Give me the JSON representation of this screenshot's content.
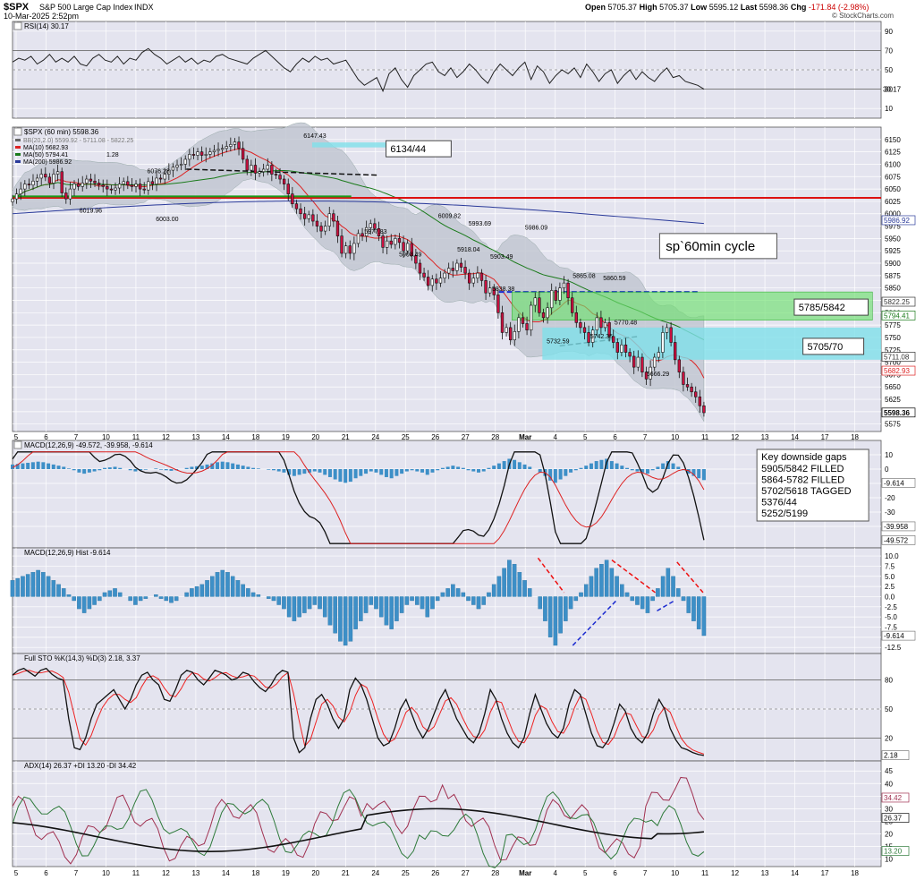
{
  "header": {
    "symbol": "$SPX",
    "name": "S&P 500 Large Cap Index",
    "exchange": "INDX",
    "datetime": "10-Mar-2025 2:52pm",
    "open_label": "Open",
    "open": "5705.37",
    "high_label": "High",
    "high": "5705.37",
    "low_label": "Low",
    "low": "5595.12",
    "last_label": "Last",
    "last": "5598.36",
    "chg_label": "Chg",
    "chg": "-171.84 (-2.98%)",
    "watermark": "© StockCharts.com"
  },
  "colors": {
    "panel_bg": "#e4e4ef",
    "grid": "#ffffff",
    "up_candle": "#ffffff",
    "down_candle": "#cc1140",
    "ma10": "#d22",
    "ma50": "#1a7a1a",
    "ma200": "#2a3a9a",
    "hist": "#3d8fc7",
    "red_hline": "#dd1111",
    "green_hline": "#1a9a1a",
    "blue_dash": "#1a2ad0"
  },
  "x_labels": [
    "5",
    "6",
    "7",
    "10",
    "11",
    "12",
    "13",
    "14",
    "18",
    "19",
    "20",
    "21",
    "24",
    "25",
    "26",
    "27",
    "28",
    "Mar",
    "4",
    "5",
    "6",
    "7",
    "10",
    "11",
    "12",
    "13",
    "14",
    "17",
    "18"
  ],
  "rsi": {
    "title": "RSI(14) 30.17",
    "ticks": [
      "90",
      "70",
      "50",
      "30",
      "10"
    ],
    "last_tag": "30.17",
    "values": [
      58,
      62,
      60,
      64,
      56,
      60,
      66,
      58,
      62,
      58,
      64,
      56,
      54,
      62,
      66,
      60,
      58,
      64,
      56,
      62,
      60,
      68,
      72,
      66,
      62,
      56,
      60,
      64,
      58,
      62,
      56,
      60,
      58,
      64,
      66,
      62,
      60,
      58,
      56,
      62,
      66,
      70,
      64,
      58,
      52,
      48,
      56,
      62,
      58,
      64,
      60,
      62,
      56,
      58,
      60,
      50,
      40,
      34,
      38,
      42,
      28,
      46,
      52,
      40,
      32,
      44,
      50,
      56,
      58,
      48,
      44,
      52,
      42,
      48,
      56,
      50,
      42,
      36,
      48,
      56,
      50,
      44,
      52,
      58,
      40,
      54,
      48,
      36,
      44,
      50,
      46,
      52,
      42,
      56,
      48,
      38,
      46,
      50,
      36,
      44,
      50,
      40,
      48,
      42,
      38,
      46,
      52,
      42,
      44,
      38,
      36,
      34,
      30
    ]
  },
  "price": {
    "title": "$SPX (60 min) 5598.36",
    "legend": [
      "BB(20,2.0) 5599.92 - 5711.08 - 5822.25",
      "MA(10) 5682.93",
      "MA(50) 5794.41",
      "MA(200) 5986.92"
    ],
    "ma50_extra": "1.28",
    "ymin": 5560,
    "ymax": 6175,
    "ticks": [
      "6150",
      "6125",
      "6100",
      "6075",
      "6050",
      "6025",
      "6000",
      "5975",
      "5950",
      "5925",
      "5900",
      "5875",
      "5850",
      "5825",
      "5800",
      "5775",
      "5750",
      "5725",
      "5700",
      "5675",
      "5650",
      "5625",
      "5600",
      "5575"
    ],
    "tags": [
      {
        "label": "5986.92",
        "value": 5986.92,
        "bg": "#ffffff",
        "fg": "#2a3a9a"
      },
      {
        "label": "5822.25",
        "value": 5822.25,
        "bg": "#ffffff",
        "fg": "#333333"
      },
      {
        "label": "5794.41",
        "value": 5794.41,
        "bg": "#ffffff",
        "fg": "#1a7a1a"
      },
      {
        "label": "5711.08",
        "value": 5711.08,
        "bg": "#ffffff",
        "fg": "#333333"
      },
      {
        "label": "5682.93",
        "value": 5682.93,
        "bg": "#ffffff",
        "fg": "#d22"
      },
      {
        "label": "5598.36",
        "value": 5598.36,
        "bg": "#ffffff",
        "fg": "#000000"
      }
    ],
    "closes": [
      6030,
      6040,
      6050,
      6060,
      6058,
      6066,
      6072,
      6080,
      6074,
      6062,
      6080,
      6085,
      6042,
      6030,
      6050,
      6060,
      6055,
      6062,
      6070,
      6066,
      6062,
      6058,
      6055,
      6050,
      6048,
      6052,
      6060,
      6065,
      6058,
      6055,
      6060,
      6050,
      6048,
      6065,
      6060,
      6072,
      6070,
      6080,
      6088,
      6094,
      6098,
      6100,
      6110,
      6120,
      6118,
      6125,
      6118,
      6120,
      6125,
      6128,
      6130,
      6132,
      6136,
      6140,
      6145,
      6132,
      6110,
      6088,
      6098,
      6082,
      6085,
      6090,
      6098,
      6080,
      6078,
      6070,
      6060,
      6040,
      6020,
      6010,
      6000,
      5990,
      5998,
      5985,
      5975,
      5965,
      5975,
      6000,
      5985,
      5955,
      5920,
      5935,
      5920,
      5940,
      5960,
      5955,
      5972,
      5980,
      5970,
      5955,
      5932,
      5945,
      5938,
      5950,
      5942,
      5925,
      5940,
      5915,
      5900,
      5880,
      5872,
      5855,
      5868,
      5860,
      5870,
      5880,
      5890,
      5885,
      5900,
      5892,
      5880,
      5860,
      5870,
      5880,
      5865,
      5840,
      5850,
      5836,
      5800,
      5760,
      5770,
      5745,
      5762,
      5790,
      5778,
      5765,
      5815,
      5830,
      5800,
      5790,
      5810,
      5845,
      5825,
      5850,
      5860,
      5830,
      5800,
      5780,
      5770,
      5760,
      5740,
      5765,
      5790,
      5770,
      5780,
      5752,
      5740,
      5720,
      5735,
      5720,
      5712,
      5690,
      5710,
      5680,
      5666,
      5690,
      5710,
      5720,
      5760,
      5770,
      5740,
      5705,
      5680,
      5655,
      5650,
      5640,
      5630,
      5612,
      5598
    ],
    "annotations": [
      {
        "label": "6147.43",
        "x": 0.335,
        "v": 6147.43
      },
      {
        "label": "6076.28",
        "x": 0.155,
        "v": 6076.28
      },
      {
        "label": "6019.96",
        "x": 0.077,
        "v": 6019.96
      },
      {
        "label": "6003.00",
        "x": 0.165,
        "v": 6003.0
      },
      {
        "label": "6009.82",
        "x": 0.49,
        "v": 6009.82
      },
      {
        "label": "5993.69",
        "x": 0.525,
        "v": 5993.69
      },
      {
        "label": "5986.09",
        "x": 0.59,
        "v": 5986.09
      },
      {
        "label": "5977.83",
        "x": 0.405,
        "v": 5977.83
      },
      {
        "label": "5908.49",
        "x": 0.445,
        "v": 5908.49
      },
      {
        "label": "5918.04",
        "x": 0.512,
        "v": 5918.04
      },
      {
        "label": "5903.49",
        "x": 0.55,
        "v": 5903.49
      },
      {
        "label": "5838.38",
        "x": 0.552,
        "v": 5838.38
      },
      {
        "label": "5865.08",
        "x": 0.645,
        "v": 5865.08
      },
      {
        "label": "5860.59",
        "x": 0.68,
        "v": 5860.59
      },
      {
        "label": "5770.48",
        "x": 0.693,
        "v": 5770.48
      },
      {
        "label": "5732.59",
        "x": 0.615,
        "v": 5732.59
      },
      {
        "label": "5742.35",
        "x": 0.665,
        "v": 5742.35
      },
      {
        "label": "5666.29",
        "x": 0.73,
        "v": 5666.29
      }
    ],
    "boxes": [
      {
        "label": "6134/44",
        "v0": 6134,
        "v1": 6144
      },
      {
        "label": "5785/5842",
        "v0": 5785,
        "v1": 5842
      },
      {
        "label": "5705/70",
        "v0": 5705,
        "v1": 5770
      }
    ],
    "cycle_label": "sp`60min cycle",
    "red_level": 6032,
    "green_level": 6035,
    "blue_level": 5842
  },
  "macd": {
    "title": "MACD(12,26,9) -49.572, -39.958, -9.614",
    "ticks": [
      "10",
      "0",
      "-10",
      "-20",
      "-30",
      "-40"
    ],
    "tags": [
      "-9.614",
      "-39.958",
      "-49.572"
    ],
    "box_title": "Key downside gaps",
    "box_lines": [
      "5905/5842 FILLED",
      "5864-5782 FILLED",
      "5702/5618 TAGGED",
      "5376/44",
      "5252/5199"
    ]
  },
  "hist": {
    "title": "MACD(12,26,9) Hist -9.614",
    "ticks": [
      "10.0",
      "7.5",
      "5.0",
      "2.5",
      "0.0",
      "-2.5",
      "-5.0",
      "-7.5",
      "-10.0",
      "-12.5"
    ],
    "last_tag": "-9.614",
    "values": [
      4,
      4.5,
      5,
      5.5,
      6,
      6.5,
      6,
      5,
      4,
      3,
      2,
      0.5,
      -1,
      -3,
      -4,
      -3,
      -2,
      -1,
      1,
      1.5,
      2,
      1,
      0,
      -1,
      -2,
      -1,
      -0.5,
      0,
      0.5,
      -0.5,
      -1,
      -1.5,
      -1,
      0,
      1,
      2,
      2.5,
      3,
      4,
      5,
      6,
      6.5,
      6,
      5,
      4,
      3,
      2,
      1,
      0.5,
      0,
      -0.5,
      -1,
      -2,
      -3,
      -5,
      -6,
      -5,
      -4,
      -3,
      -2,
      -3,
      -5,
      -7,
      -9,
      -11,
      -12,
      -11,
      -8,
      -6,
      -4,
      -2,
      -3,
      -5,
      -7,
      -8,
      -6,
      -4,
      -2,
      -1,
      -2,
      -3,
      -5,
      -3,
      -1,
      1,
      2,
      3,
      2,
      1,
      -1,
      -2,
      -3,
      -2,
      1,
      3,
      5,
      7,
      9,
      8,
      6,
      4,
      2,
      0,
      -3,
      -6,
      -10,
      -12,
      -9,
      -6,
      -3,
      -1,
      1,
      3,
      5,
      7,
      8,
      9,
      7,
      5,
      3,
      1,
      -1,
      -2,
      -3,
      -4,
      -1,
      2,
      5,
      7,
      5,
      2,
      -1,
      -4,
      -6,
      -8,
      -9.6
    ]
  },
  "sto": {
    "title": "Full STO %K(14,3) %D(3) 2.18, 3.37",
    "ticks": [
      "80",
      "50",
      "20"
    ],
    "last_tag": "2.18",
    "k": [
      85,
      90,
      92,
      88,
      84,
      90,
      92,
      86,
      82,
      80,
      40,
      10,
      8,
      20,
      40,
      55,
      60,
      65,
      70,
      60,
      50,
      60,
      75,
      85,
      88,
      80,
      75,
      60,
      58,
      70,
      85,
      90,
      88,
      80,
      75,
      82,
      90,
      88,
      85,
      80,
      82,
      88,
      86,
      78,
      72,
      68,
      75,
      85,
      90,
      88,
      20,
      5,
      10,
      40,
      60,
      65,
      55,
      40,
      30,
      40,
      70,
      82,
      75,
      60,
      40,
      20,
      12,
      15,
      30,
      50,
      60,
      45,
      30,
      20,
      30,
      45,
      60,
      70,
      55,
      40,
      30,
      20,
      15,
      25,
      45,
      70,
      60,
      40,
      25,
      15,
      10,
      20,
      45,
      65,
      50,
      35,
      25,
      20,
      30,
      55,
      70,
      65,
      45,
      25,
      12,
      10,
      18,
      35,
      55,
      48,
      30,
      20,
      15,
      25,
      45,
      60,
      50,
      30,
      18,
      10,
      8,
      5,
      3,
      2
    ]
  },
  "adx": {
    "title": "ADX(14) 26.37 +DI 13.20 -DI 34.42",
    "ticks": [
      "45",
      "40",
      "35",
      "30",
      "25",
      "20",
      "15",
      "10"
    ],
    "tags": [
      "34.42",
      "26.37",
      "13.20"
    ]
  }
}
